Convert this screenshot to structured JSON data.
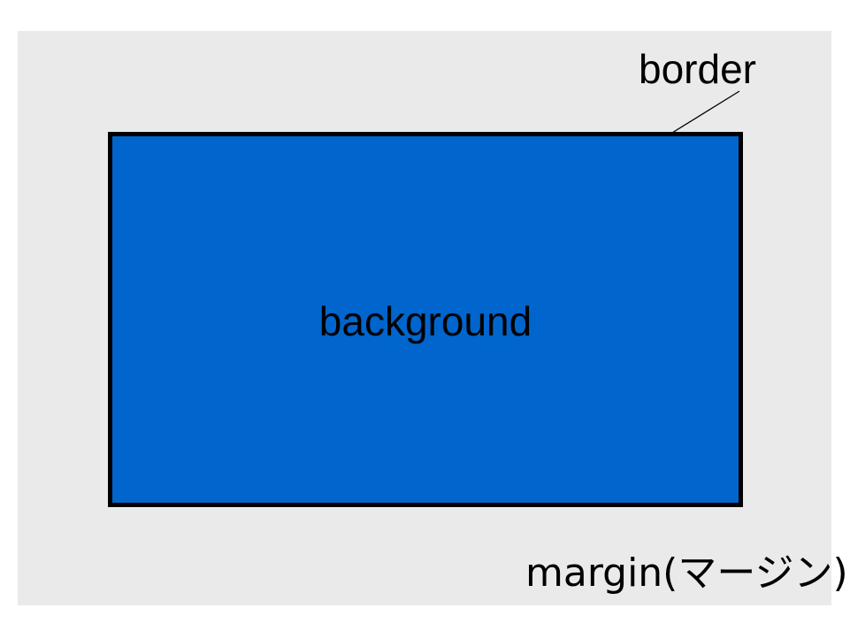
{
  "labels": {
    "background": "background",
    "border": "border",
    "margin": "margin(マージン)"
  },
  "colors": {
    "margin_fill": "#eaeaea",
    "background_fill": "#0065cc",
    "border_stroke": "#000000",
    "page": "#ffffff"
  }
}
